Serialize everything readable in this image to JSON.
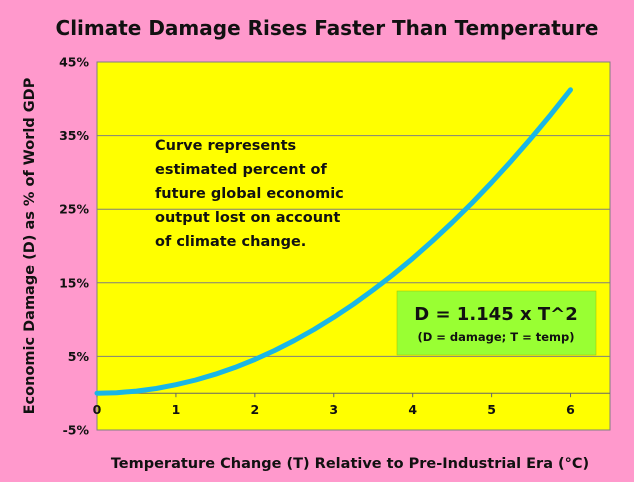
{
  "chart_data": {
    "type": "line",
    "title": "Climate Damage Rises Faster Than Temperature",
    "xlabel": "Temperature Change (T) Relative to Pre-Industrial Era (°C)",
    "ylabel": "Economic Damage (D) as % of World GDP",
    "xlim": [
      0,
      6.5
    ],
    "ylim": [
      -5,
      45
    ],
    "x_ticks": [
      "0",
      "1",
      "2",
      "3",
      "4",
      "5",
      "6"
    ],
    "y_ticks": [
      "-5%",
      "5%",
      "15%",
      "25%",
      "35%",
      "45%"
    ],
    "grid": "horizontal",
    "series": [
      {
        "x": [
          0,
          0.25,
          0.5,
          0.75,
          1,
          1.25,
          1.5,
          1.75,
          2,
          2.25,
          2.5,
          2.75,
          3,
          3.25,
          3.5,
          3.75,
          4,
          4.25,
          4.5,
          4.75,
          5,
          5.25,
          5.5,
          5.75,
          6
        ],
        "values": [
          0,
          0.07,
          0.29,
          0.64,
          1.15,
          1.79,
          2.58,
          3.51,
          4.58,
          5.8,
          7.16,
          8.66,
          10.31,
          12.09,
          14.03,
          16.1,
          18.32,
          20.68,
          23.19,
          25.83,
          28.63,
          31.56,
          34.64,
          37.85,
          41.22
        ]
      }
    ],
    "annotations": {
      "note_lines": [
        "Curve represents",
        "estimated percent of",
        "future global economic",
        "output lost on account",
        "of climate change."
      ],
      "equation": "D = 1.145 x T^2",
      "equation_note": "(D = damage; T = temp)"
    },
    "colors": {
      "background": "#ff99cc",
      "plot_area": "#ffff00",
      "line": "#19b6e6",
      "equation_box": "#99ff33",
      "grid": "#7f7f7f"
    }
  }
}
